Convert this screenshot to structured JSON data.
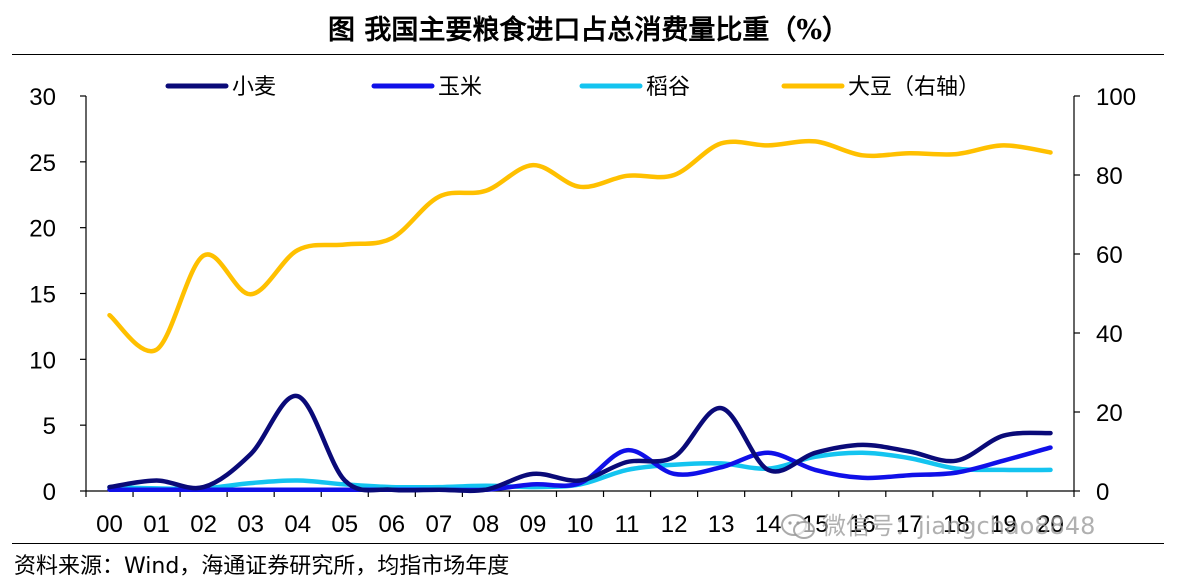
{
  "title": "图  我国主要粮食进口占总消费量比重（%）",
  "source": "资料来源：Wind，海通证券研究所，均指市场年度",
  "watermark": "微信号：jiangchao8848",
  "chart_data": {
    "type": "line",
    "categories": [
      "00",
      "01",
      "02",
      "03",
      "04",
      "05",
      "06",
      "07",
      "08",
      "09",
      "10",
      "11",
      "12",
      "13",
      "14",
      "15",
      "16",
      "17",
      "18",
      "19",
      "20"
    ],
    "left_axis": {
      "min": 0,
      "max": 30,
      "ticks": [
        0,
        5,
        10,
        15,
        20,
        25,
        30
      ]
    },
    "right_axis": {
      "min": 0,
      "max": 100,
      "ticks": [
        0,
        20,
        40,
        60,
        80,
        100
      ]
    },
    "series": [
      {
        "name": "小麦",
        "axis": "left",
        "color": "#0a0a78",
        "values": [
          0.3,
          0.8,
          0.3,
          2.8,
          7.2,
          0.8,
          0.1,
          0.1,
          0.1,
          1.3,
          0.8,
          2.2,
          2.6,
          6.3,
          1.6,
          2.9,
          3.5,
          3.0,
          2.3,
          4.2,
          4.4
        ]
      },
      {
        "name": "玉米",
        "axis": "left",
        "color": "#1010e8",
        "values": [
          0.1,
          0.1,
          0.1,
          0.1,
          0.1,
          0.1,
          0.1,
          0.1,
          0.1,
          0.5,
          0.6,
          3.1,
          1.3,
          1.8,
          2.9,
          1.6,
          1.0,
          1.2,
          1.4,
          2.3,
          3.3
        ]
      },
      {
        "name": "稻谷",
        "axis": "left",
        "color": "#14c4f0",
        "values": [
          0.3,
          0.2,
          0.2,
          0.6,
          0.8,
          0.5,
          0.3,
          0.3,
          0.4,
          0.3,
          0.5,
          1.6,
          2.0,
          2.1,
          1.7,
          2.6,
          2.9,
          2.5,
          1.7,
          1.6,
          1.6
        ]
      },
      {
        "name": "大豆（右轴）",
        "axis": "right",
        "color": "#ffc000",
        "values": [
          44.5,
          35.8,
          59.6,
          49.8,
          61.0,
          62.4,
          64.0,
          74.5,
          76.0,
          82.5,
          77.0,
          79.8,
          80.0,
          88.0,
          87.5,
          88.5,
          85.0,
          85.5,
          85.3,
          87.5,
          85.7
        ]
      }
    ]
  }
}
